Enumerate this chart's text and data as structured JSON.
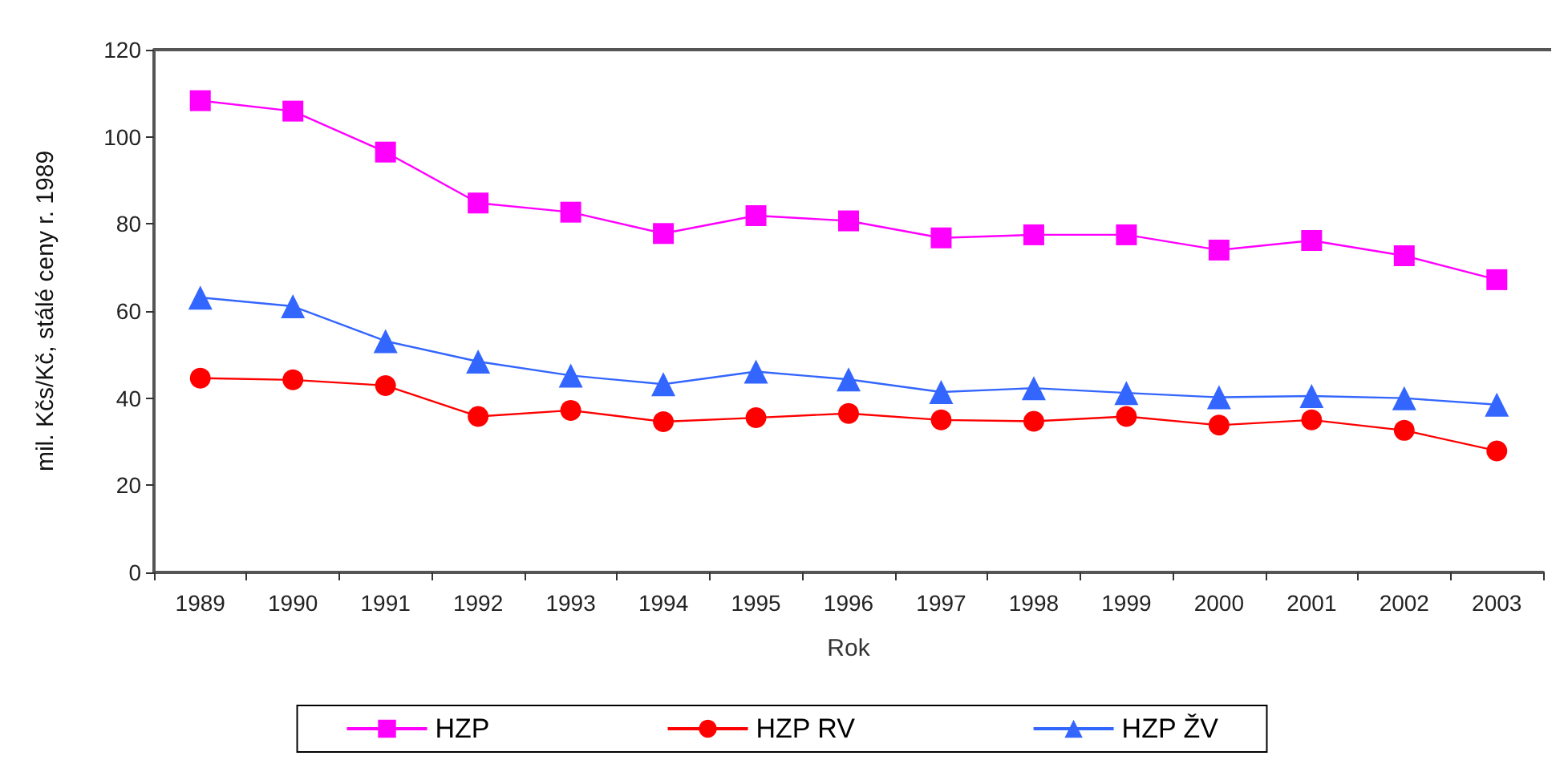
{
  "chart_data": {
    "type": "line",
    "xlabel": "Rok",
    "ylabel": "mil. Kčs/Kč, stálé ceny r. 1989",
    "categories": [
      "1989",
      "1990",
      "1991",
      "1992",
      "1993",
      "1994",
      "1995",
      "1996",
      "1997",
      "1998",
      "1999",
      "2000",
      "2001",
      "2002",
      "2003"
    ],
    "series": [
      {
        "name": "HZP",
        "color": "#ff00ff",
        "marker": "square",
        "values": [
          108.3,
          105.9,
          96.5,
          84.8,
          82.7,
          77.8,
          81.9,
          80.7,
          76.8,
          77.5,
          77.5,
          74,
          76.2,
          72.7,
          67.2
        ]
      },
      {
        "name": "HZP RV",
        "color": "#ff0000",
        "marker": "circle",
        "values": [
          44.6,
          44.2,
          42.9,
          35.8,
          37.2,
          34.6,
          35.5,
          36.5,
          35,
          34.7,
          35.8,
          33.8,
          35,
          32.6,
          27.9
        ]
      },
      {
        "name": "HZP ŽV",
        "color": "#3366ff",
        "marker": "triangle",
        "values": [
          63.1,
          61.1,
          53.1,
          48.4,
          45.2,
          43.2,
          46.1,
          44.3,
          41.4,
          42.3,
          41.2,
          40.2,
          40.5,
          40,
          38.5
        ]
      }
    ],
    "ylim": [
      0,
      120
    ],
    "yticks": [
      0,
      20,
      40,
      60,
      80,
      100,
      120
    ],
    "grid": false,
    "legend": "bottom"
  }
}
